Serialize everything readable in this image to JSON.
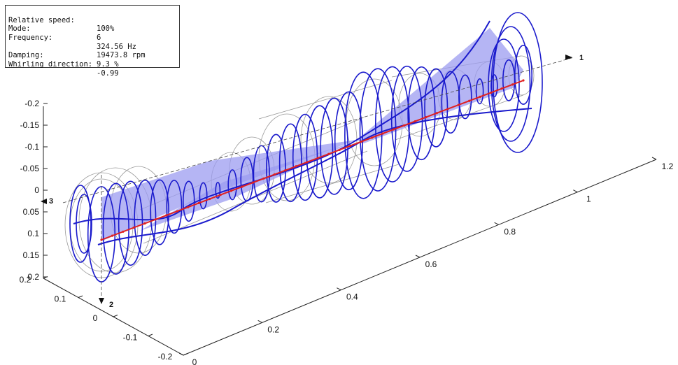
{
  "info": {
    "rows": [
      {
        "label": "Relative speed:",
        "value": "100%"
      },
      {
        "label": "Mode:",
        "value": "6"
      },
      {
        "label": "Frequency:",
        "value": "324.56 Hz"
      },
      {
        "label": "",
        "value": "19473.8 rpm"
      },
      {
        "label": "Damping:",
        "value": "9.3 %"
      },
      {
        "label": "Whirling direction:",
        "value": "-0.99"
      }
    ]
  },
  "axes": {
    "x_ticks": [
      "0",
      "0.2",
      "0.4",
      "0.6",
      "0.8",
      "1",
      "1.2"
    ],
    "y_ticks": [
      "-0.2",
      "-0.1",
      "0",
      "0.1",
      "0.2"
    ],
    "z_ticks": [
      "-0.2",
      "-0.15",
      "-0.1",
      "-0.05",
      "0",
      "0.05",
      "0.1",
      "0.15",
      "0.2"
    ],
    "frame_labels": [
      "1",
      "2",
      "3"
    ]
  },
  "colors": {
    "orbit": "#1a1acc",
    "fill": "#9c9cf0",
    "shaft": "#e02020",
    "wireframe": "#9a9a9a",
    "axis": "#222222"
  }
}
